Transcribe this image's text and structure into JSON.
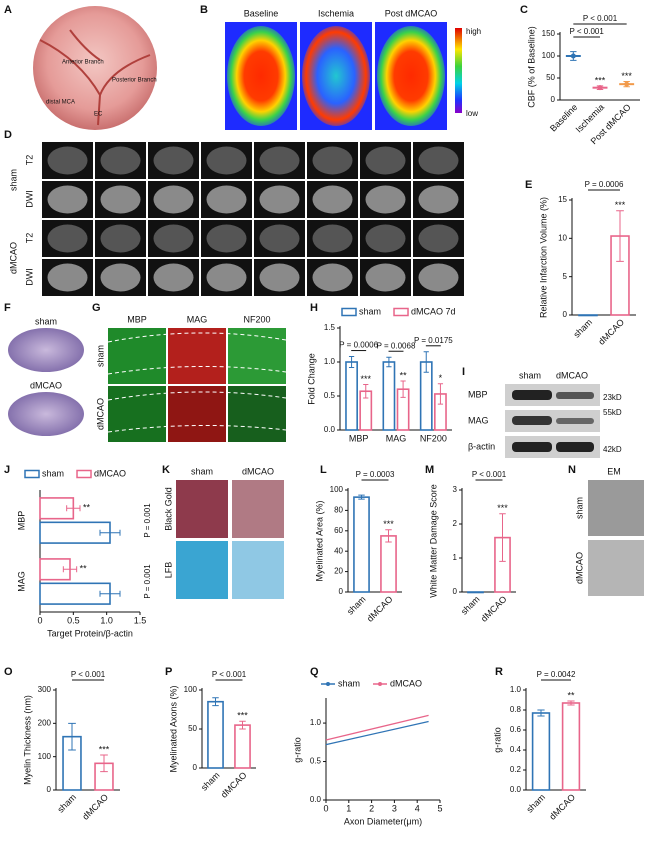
{
  "panels": {
    "A": {
      "label": "A",
      "annotations": [
        "Anterior Branch",
        "Posterior Branch",
        "distal MCA",
        "EC"
      ]
    },
    "B": {
      "label": "B",
      "titles": [
        "Baseline",
        "Ischemia",
        "Post dMCAO"
      ],
      "scale": [
        "high",
        "low"
      ]
    },
    "D": {
      "label": "D",
      "groups": [
        "sham",
        "dMCAO"
      ],
      "sequences": [
        "T2",
        "DWI"
      ]
    },
    "F": {
      "label": "F",
      "groups": [
        "sham",
        "dMCAO"
      ]
    },
    "G": {
      "label": "G",
      "stains": [
        "MBP",
        "MAG",
        "NF200"
      ],
      "groups": [
        "sham",
        "dMCAO"
      ]
    },
    "I": {
      "label": "I",
      "groups": [
        "sham",
        "dMCAO"
      ],
      "proteins": [
        "MBP",
        "MAG",
        "β-actin"
      ],
      "sizes": [
        "23kD",
        "55kD",
        "42kD"
      ]
    },
    "K": {
      "label": "K",
      "groups": [
        "sham",
        "dMCAO"
      ],
      "stains": [
        "Black Gold",
        "LFB"
      ]
    },
    "N": {
      "label": "N",
      "title": "EM",
      "groups": [
        "sham",
        "dMCAO"
      ]
    }
  },
  "chart_data": [
    {
      "label": "C",
      "type": "dot",
      "ylabel": "CBF (% of Baseline)",
      "categories": [
        "Baseline",
        "Ischemia",
        "Post dMCAO"
      ],
      "colors": [
        "#2f74b5",
        "#e8658a",
        "#f29a4a"
      ],
      "values": [
        100,
        28,
        36
      ],
      "errors": [
        10,
        4,
        6
      ],
      "ylim": [
        0,
        150
      ],
      "yticks": [
        0,
        50,
        100,
        150
      ],
      "p_values": [
        "P < 0.001",
        "P < 0.001"
      ],
      "stars": [
        null,
        "***",
        "***"
      ]
    },
    {
      "label": "E",
      "type": "bar",
      "ylabel": "Relative Infarction Volume (%)",
      "categories": [
        "sham",
        "dMCAO"
      ],
      "colors": [
        "#2f74b5",
        "#e8658a"
      ],
      "values": [
        0,
        10.3
      ],
      "errors": [
        0,
        3.3
      ],
      "ylim": [
        0,
        15
      ],
      "yticks": [
        0,
        5,
        10,
        15
      ],
      "p_values": [
        "P = 0.0006"
      ],
      "stars": [
        null,
        "***"
      ]
    },
    {
      "label": "H",
      "type": "grouped_bar",
      "ylabel": "Fold Change",
      "categories": [
        "MBP",
        "MAG",
        "NF200"
      ],
      "series": [
        {
          "name": "sham",
          "color": "#2f74b5",
          "values": [
            1.0,
            1.0,
            1.0
          ],
          "errors": [
            0.08,
            0.07,
            0.15
          ]
        },
        {
          "name": "dMCAO 7d",
          "color": "#e8658a",
          "values": [
            0.57,
            0.6,
            0.53
          ],
          "errors": [
            0.1,
            0.12,
            0.15
          ]
        }
      ],
      "ylim": [
        0,
        1.5
      ],
      "yticks": [
        {
          "value": 0,
          "label": "0.0"
        },
        0.5,
        {
          "value": 1,
          "label": "1.0"
        },
        1.5
      ],
      "p_values": [
        "P = 0.0006",
        "P = 0.0068",
        "P = 0.0175"
      ],
      "stars": [
        "***",
        "**",
        "*"
      ]
    },
    {
      "label": "J",
      "type": "hbar",
      "xlabel": "Target Protein/β-actin",
      "categories": [
        "MBP",
        "MAG"
      ],
      "series": [
        {
          "name": "sham",
          "color": "#2f74b5",
          "values": [
            1.05,
            1.05
          ],
          "errors": [
            0.15,
            0.15
          ]
        },
        {
          "name": "dMCAO",
          "color": "#e8658a",
          "values": [
            0.5,
            0.45
          ],
          "errors": [
            0.1,
            0.1
          ]
        }
      ],
      "xlim": [
        0,
        1.5
      ],
      "xticks": [
        0,
        0.5,
        {
          "value": 1,
          "label": "1.0"
        },
        1.5
      ],
      "p_values": [
        "P = 0.001",
        "P = 0.001"
      ],
      "stars": [
        "**",
        "**"
      ]
    },
    {
      "label": "L",
      "type": "bar",
      "ylabel": "Myelinated Area (%)",
      "categories": [
        "sham",
        "dMCAO"
      ],
      "colors": [
        "#2f74b5",
        "#e8658a"
      ],
      "values": [
        93,
        55
      ],
      "errors": [
        2,
        6
      ],
      "ylim": [
        0,
        100
      ],
      "yticks": [
        0,
        20,
        40,
        60,
        80,
        100
      ],
      "p_values": [
        "P = 0.0003"
      ],
      "stars": [
        null,
        "***"
      ]
    },
    {
      "label": "M",
      "type": "bar",
      "ylabel": "White Matter Damage Score",
      "categories": [
        "sham",
        "dMCAO"
      ],
      "colors": [
        "#2f74b5",
        "#e8658a"
      ],
      "values": [
        0,
        1.6
      ],
      "errors": [
        0,
        0.7
      ],
      "ylim": [
        0,
        3
      ],
      "yticks": [
        0,
        1,
        2,
        3
      ],
      "p_values": [
        "P < 0.001"
      ],
      "stars": [
        null,
        "***"
      ]
    },
    {
      "label": "O",
      "type": "bar",
      "ylabel": "Myelin Thickness (nm)",
      "categories": [
        "sham",
        "dMCAO"
      ],
      "colors": [
        "#2f74b5",
        "#e8658a"
      ],
      "values": [
        160,
        80
      ],
      "errors": [
        40,
        25
      ],
      "ylim": [
        0,
        300
      ],
      "yticks": [
        0,
        100,
        200,
        300
      ],
      "p_values": [
        "P < 0.001"
      ],
      "stars": [
        null,
        "***"
      ]
    },
    {
      "label": "P",
      "type": "bar",
      "ylabel": "Myelinated Axons (%)",
      "categories": [
        "sham",
        "dMCAO"
      ],
      "colors": [
        "#2f74b5",
        "#e8658a"
      ],
      "values": [
        85,
        55
      ],
      "errors": [
        5,
        5
      ],
      "ylim": [
        0,
        100
      ],
      "yticks": [
        0,
        50,
        100
      ],
      "p_values": [
        "P < 0.001"
      ],
      "stars": [
        null,
        "***"
      ]
    },
    {
      "label": "Q",
      "type": "line",
      "xlabel": "Axon Diameter(μm)",
      "ylabel": "g-ratio",
      "series": [
        {
          "name": "sham",
          "color": "#2f74b5",
          "x": [
            0,
            4.5
          ],
          "values": [
            0.72,
            1.02
          ]
        },
        {
          "name": "dMCAO",
          "color": "#e8658a",
          "x": [
            0,
            4.5
          ],
          "values": [
            0.78,
            1.1
          ]
        }
      ],
      "xlim": [
        0,
        5
      ],
      "xticks": [
        0,
        1,
        2,
        3,
        4,
        5
      ],
      "ylim": [
        0,
        1.3
      ],
      "yticks": [
        {
          "value": 0,
          "label": "0.0"
        },
        0.5,
        {
          "value": 1,
          "label": "1.0"
        }
      ]
    },
    {
      "label": "R",
      "type": "bar",
      "ylabel": "g-ratio",
      "categories": [
        "sham",
        "dMCAO"
      ],
      "colors": [
        "#2f74b5",
        "#e8658a"
      ],
      "values": [
        0.77,
        0.87
      ],
      "errors": [
        0.03,
        0.02
      ],
      "ylim": [
        0,
        1
      ],
      "yticks": [
        {
          "value": 0,
          "label": "0.0"
        },
        0.2,
        0.4,
        0.6,
        0.8,
        {
          "value": 1,
          "label": "1.0"
        }
      ],
      "p_values": [
        "P = 0.0042"
      ],
      "stars": [
        null,
        "**"
      ]
    }
  ]
}
